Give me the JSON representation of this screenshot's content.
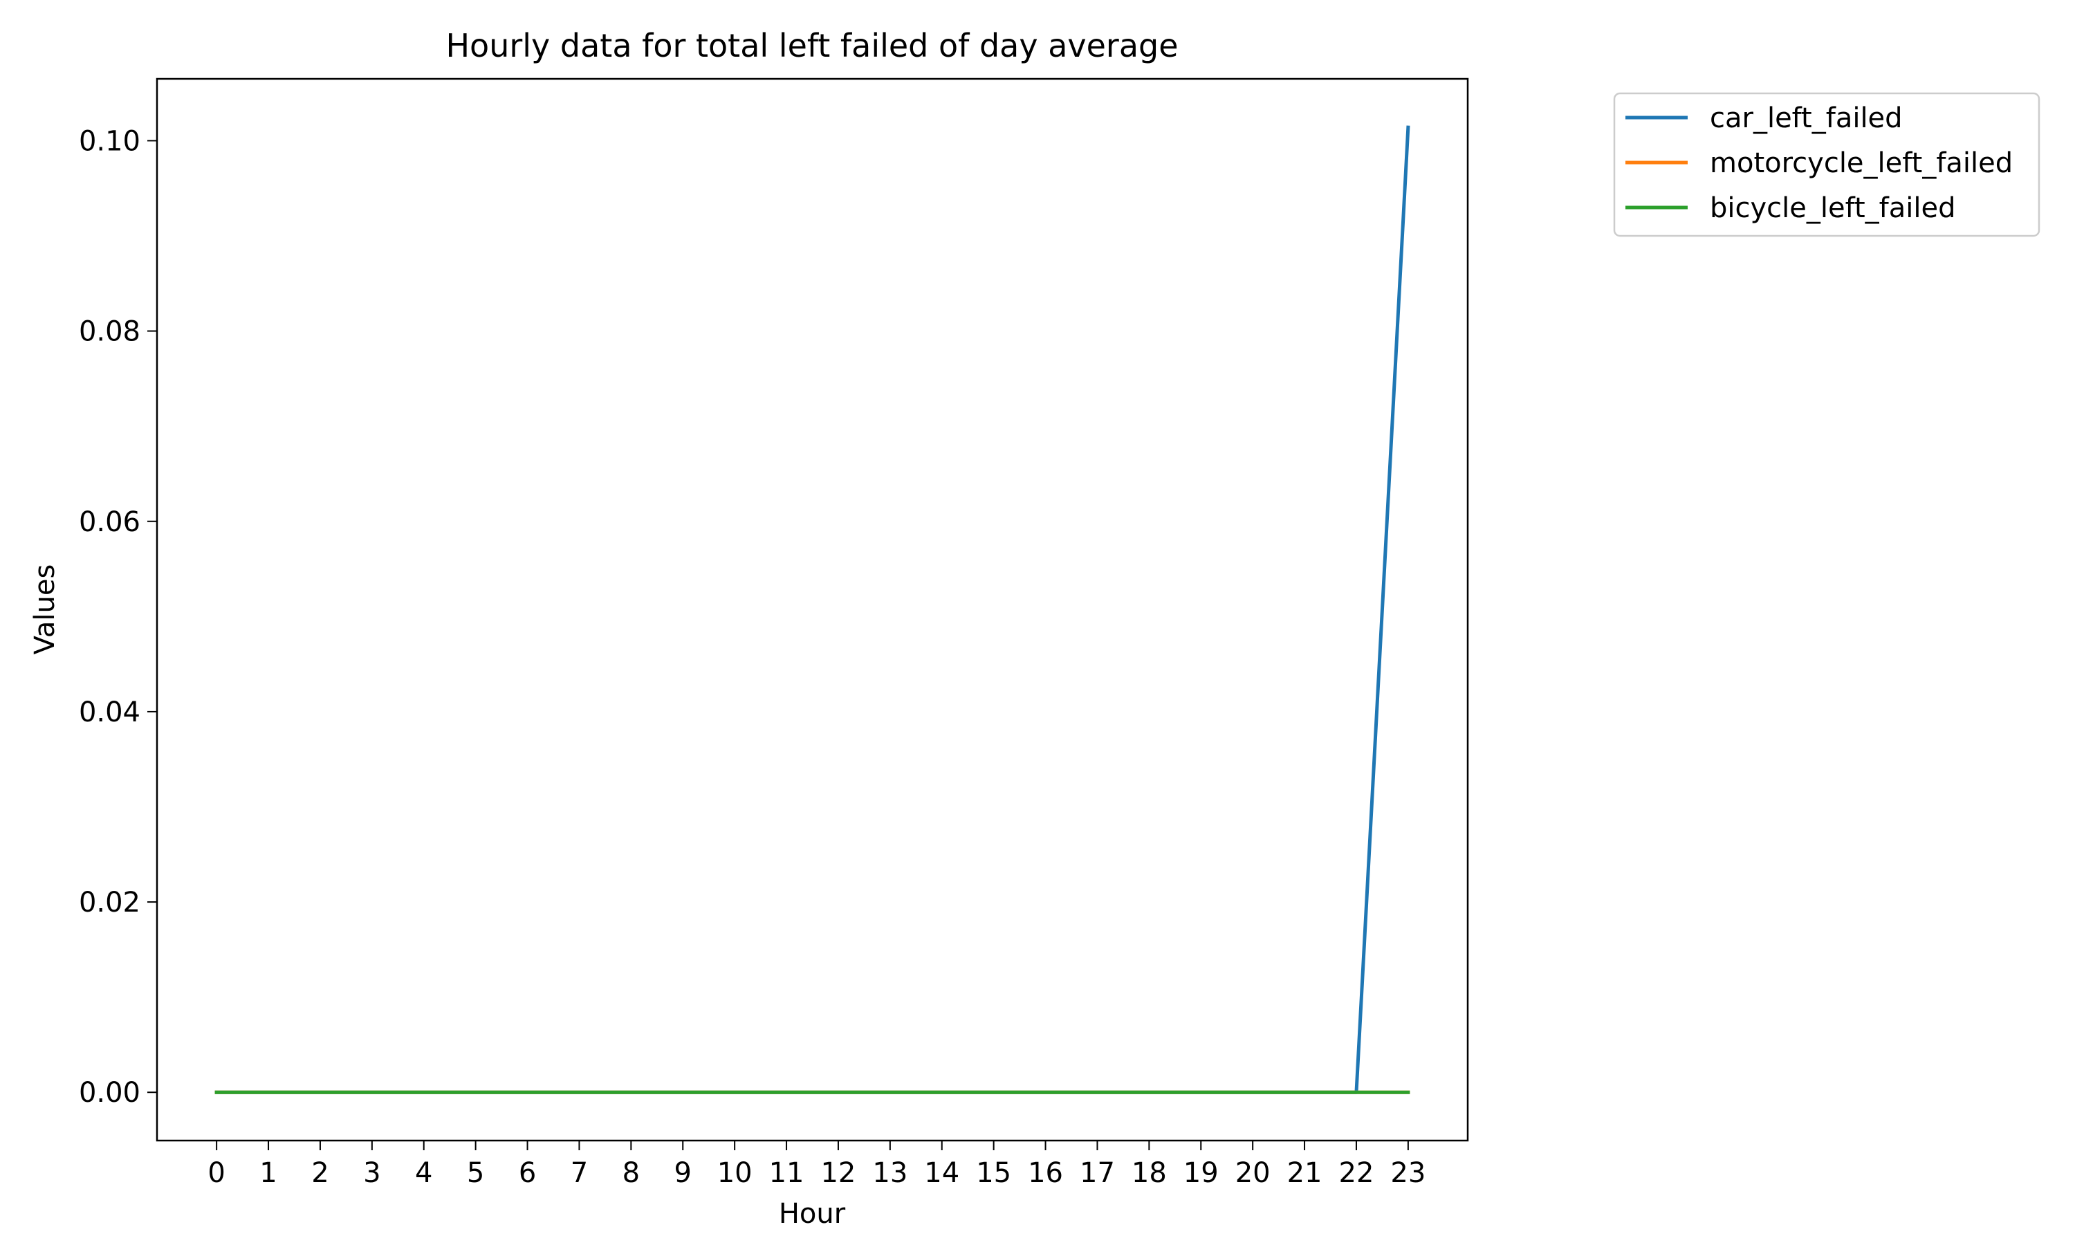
{
  "chart_data": {
    "type": "line",
    "title": "Hourly data for total left failed of day average",
    "xlabel": "Hour",
    "ylabel": "Values",
    "x": [
      0,
      1,
      2,
      3,
      4,
      5,
      6,
      7,
      8,
      9,
      10,
      11,
      12,
      13,
      14,
      15,
      16,
      17,
      18,
      19,
      20,
      21,
      22,
      23
    ],
    "x_tick_labels": [
      "0",
      "1",
      "2",
      "3",
      "4",
      "5",
      "6",
      "7",
      "8",
      "9",
      "10",
      "11",
      "12",
      "13",
      "14",
      "15",
      "16",
      "17",
      "18",
      "19",
      "20",
      "21",
      "22",
      "23"
    ],
    "y_ticks": [
      0.0,
      0.02,
      0.04,
      0.06,
      0.08,
      0.1
    ],
    "y_tick_labels": [
      "0.00",
      "0.02",
      "0.04",
      "0.06",
      "0.08",
      "0.10"
    ],
    "xlim": [
      -1.15,
      24.15
    ],
    "ylim": [
      -0.00507,
      0.1065
    ],
    "grid": false,
    "legend_position": "outside upper-right",
    "series": [
      {
        "name": "car_left_failed",
        "color": "#1f77b4",
        "values": [
          0,
          0,
          0,
          0,
          0,
          0,
          0,
          0,
          0,
          0,
          0,
          0,
          0,
          0,
          0,
          0,
          0,
          0,
          0,
          0,
          0,
          0,
          0,
          0.1014
        ]
      },
      {
        "name": "motorcycle_left_failed",
        "color": "#ff7f0e",
        "values": [
          0,
          0,
          0,
          0,
          0,
          0,
          0,
          0,
          0,
          0,
          0,
          0,
          0,
          0,
          0,
          0,
          0,
          0,
          0,
          0,
          0,
          0,
          0,
          0
        ]
      },
      {
        "name": "bicycle_left_failed",
        "color": "#2ca02c",
        "values": [
          0,
          0,
          0,
          0,
          0,
          0,
          0,
          0,
          0,
          0,
          0,
          0,
          0,
          0,
          0,
          0,
          0,
          0,
          0,
          0,
          0,
          0,
          0,
          0
        ]
      }
    ]
  }
}
